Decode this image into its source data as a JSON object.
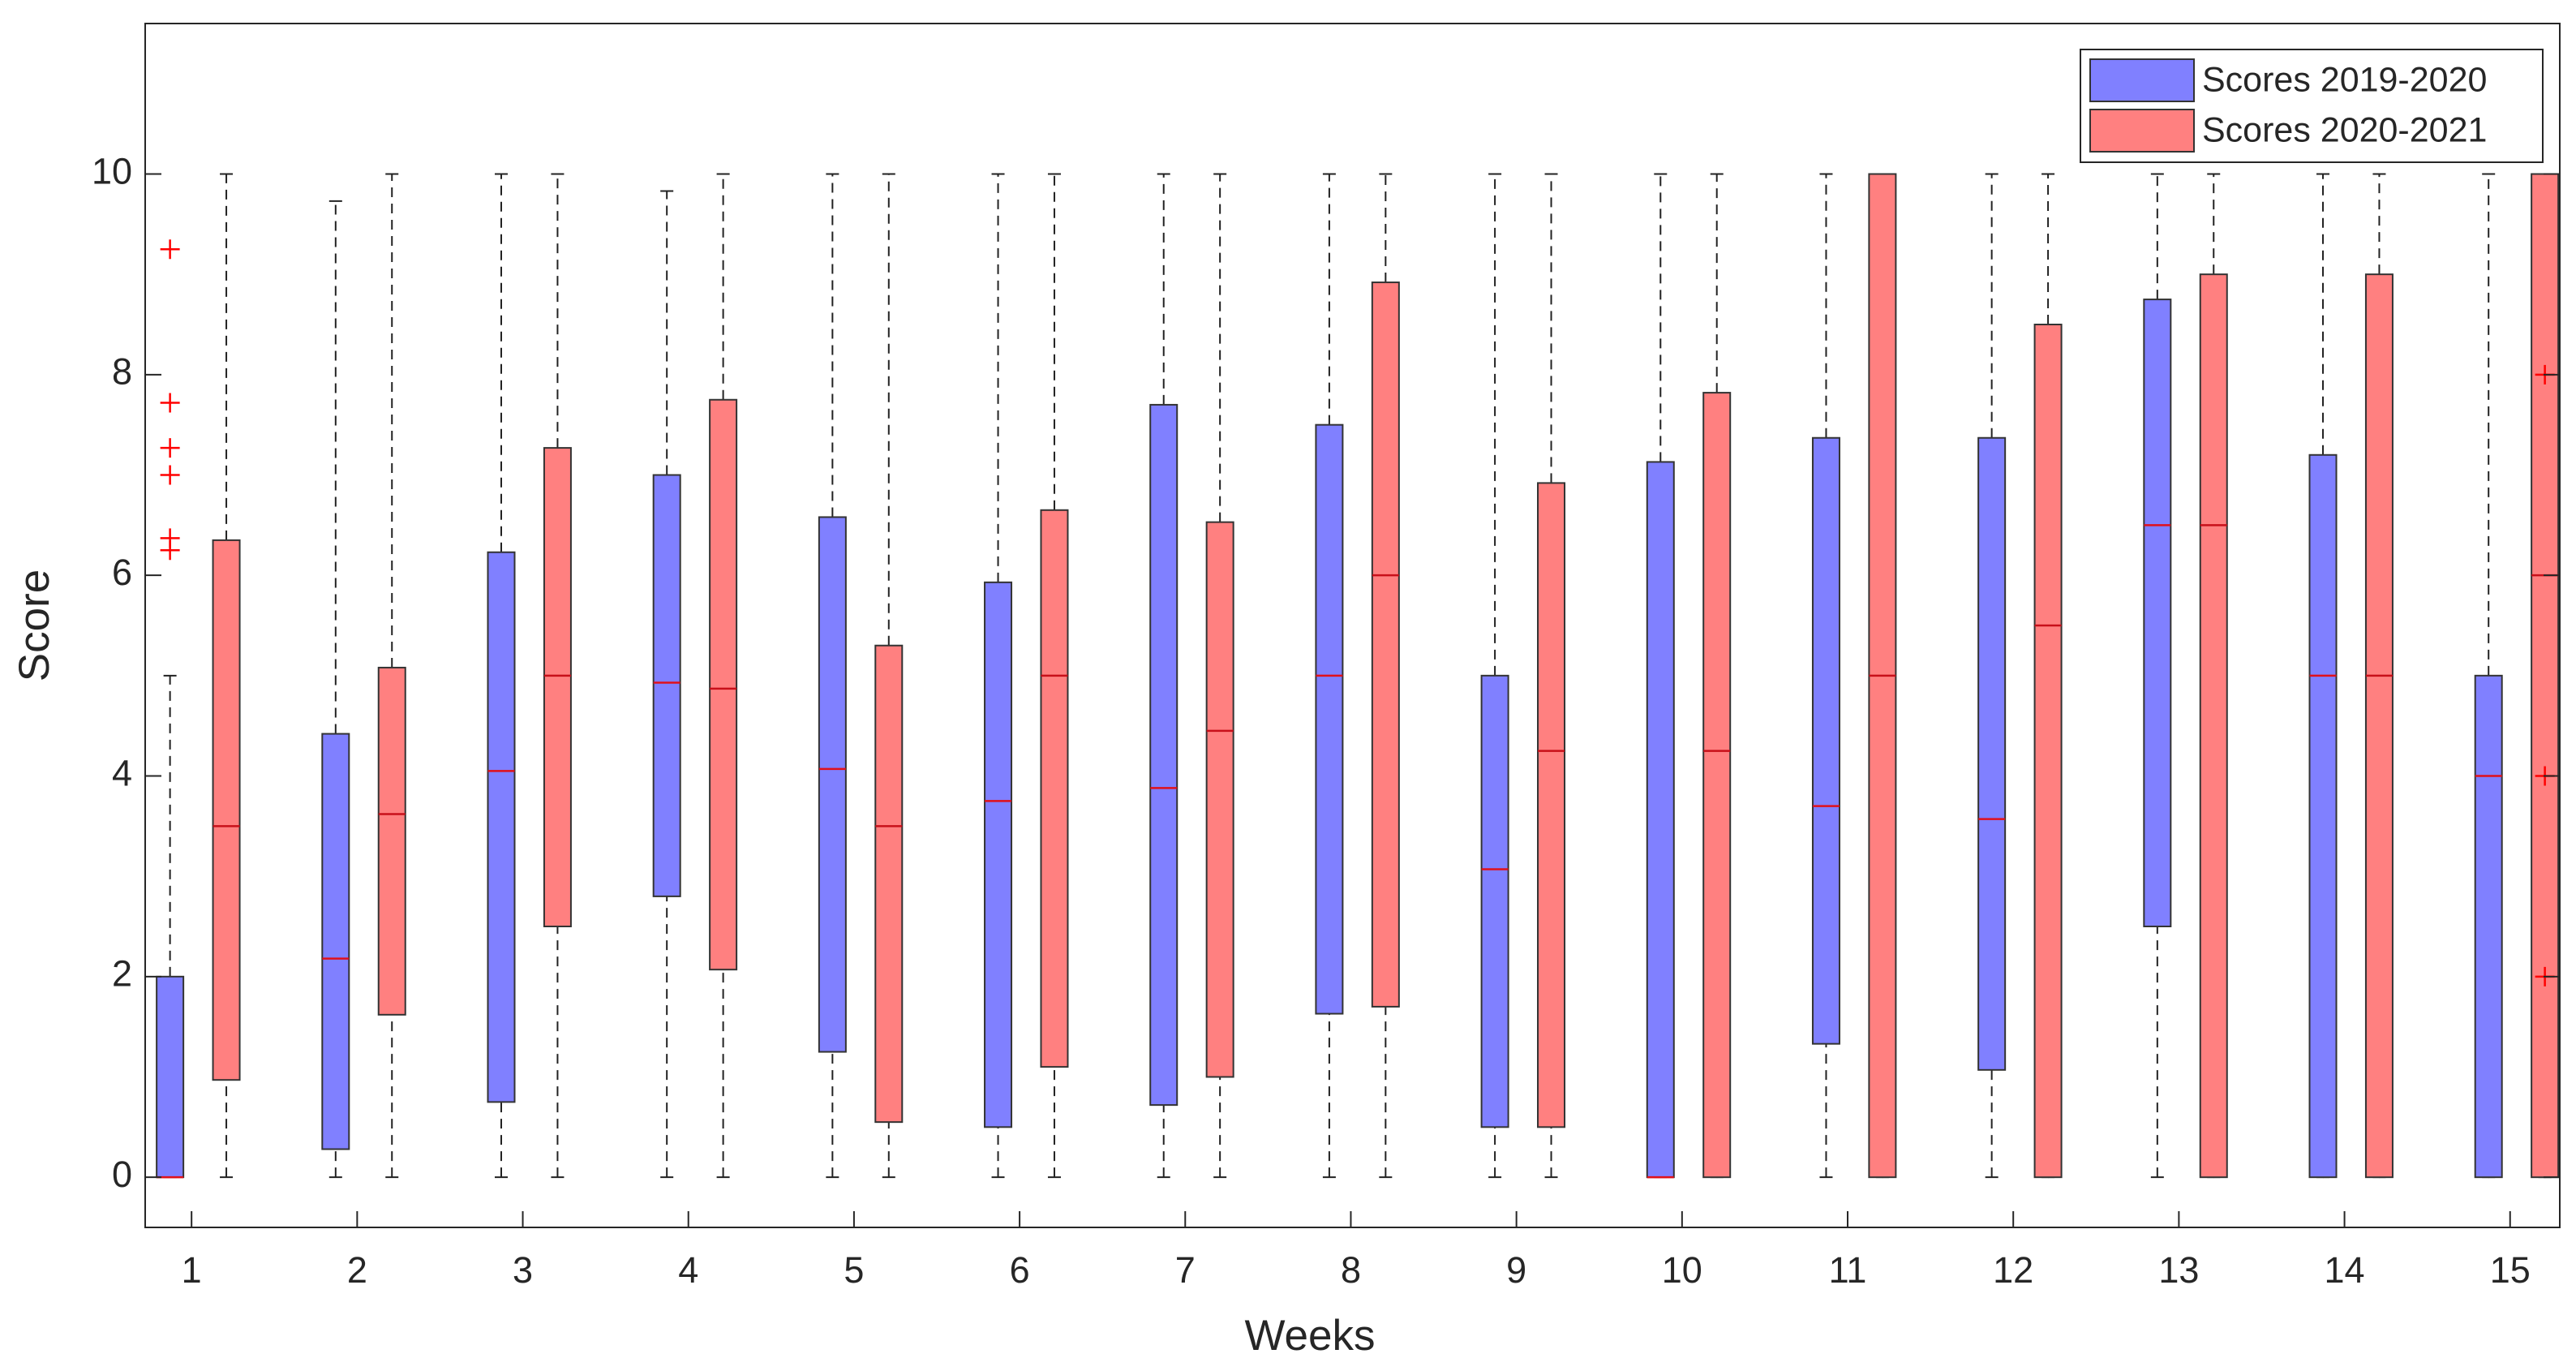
{
  "chart_data": {
    "type": "box",
    "x_label": "Weeks",
    "y_label": "Score",
    "categories": [
      "1",
      "2",
      "3",
      "4",
      "5",
      "6",
      "7",
      "8",
      "9",
      "10",
      "11",
      "12",
      "13",
      "14",
      "15"
    ],
    "ylim": [
      -0.5,
      11.5
    ],
    "yticks": [
      0,
      2,
      4,
      6,
      8,
      10
    ],
    "legend": "upper right",
    "series": [
      {
        "name": "Scores 2019-2020",
        "color": "#8080ff",
        "median_color": "#e0101a",
        "whisker_low": [
          0,
          0,
          0,
          0,
          0,
          0,
          0,
          0,
          0,
          0,
          0,
          0,
          0,
          0,
          0
        ],
        "q1": [
          0,
          0.28,
          0.75,
          2.8,
          1.25,
          0.5,
          0.72,
          1.63,
          0.5,
          0,
          1.33,
          1.07,
          2.5,
          0,
          0
        ],
        "median": [
          0,
          2.18,
          4.05,
          4.93,
          4.07,
          3.75,
          3.88,
          5,
          3.07,
          0,
          3.7,
          3.57,
          6.5,
          5,
          4
        ],
        "q3": [
          2,
          4.42,
          6.23,
          7,
          6.58,
          5.93,
          7.7,
          7.5,
          5,
          7.13,
          7.37,
          7.37,
          8.75,
          7.2,
          5
        ],
        "whisker_high": [
          5,
          9.73,
          10,
          9.83,
          10,
          10,
          10,
          10,
          10,
          10,
          10,
          10,
          10,
          10,
          10
        ],
        "outliers": [
          [
            9.25,
            7.72,
            7.27,
            7,
            6.37,
            6.25
          ],
          [],
          [],
          [],
          [],
          [],
          [],
          [],
          [],
          [],
          [],
          [],
          [],
          [],
          []
        ]
      },
      {
        "name": "Scores 2020-2021",
        "color": "#ff8080",
        "median_color": "#c8101a",
        "whisker_low": [
          0,
          0,
          0,
          0,
          0,
          0,
          0,
          0,
          0,
          0,
          0,
          0,
          0,
          0,
          0
        ],
        "q1": [
          0.97,
          1.62,
          2.5,
          2.07,
          0.55,
          1.1,
          1,
          1.7,
          0.5,
          0,
          0,
          0,
          0,
          0,
          0
        ],
        "median": [
          3.5,
          3.62,
          5,
          4.87,
          3.5,
          5,
          4.45,
          6,
          4.25,
          4.25,
          5,
          5.5,
          6.5,
          5,
          6
        ],
        "q3": [
          6.35,
          5.08,
          7.27,
          7.75,
          5.3,
          6.65,
          6.53,
          8.92,
          6.92,
          7.82,
          10,
          8.5,
          9,
          9,
          10
        ],
        "whisker_high": [
          10,
          10,
          10,
          10,
          10,
          10,
          10,
          10,
          10,
          10,
          10,
          10,
          10,
          10,
          10
        ],
        "outliers": [
          [],
          [],
          [],
          [],
          [],
          [],
          [],
          [],
          [],
          [],
          [],
          [],
          [],
          [],
          [
            8,
            4,
            2
          ]
        ]
      }
    ]
  }
}
